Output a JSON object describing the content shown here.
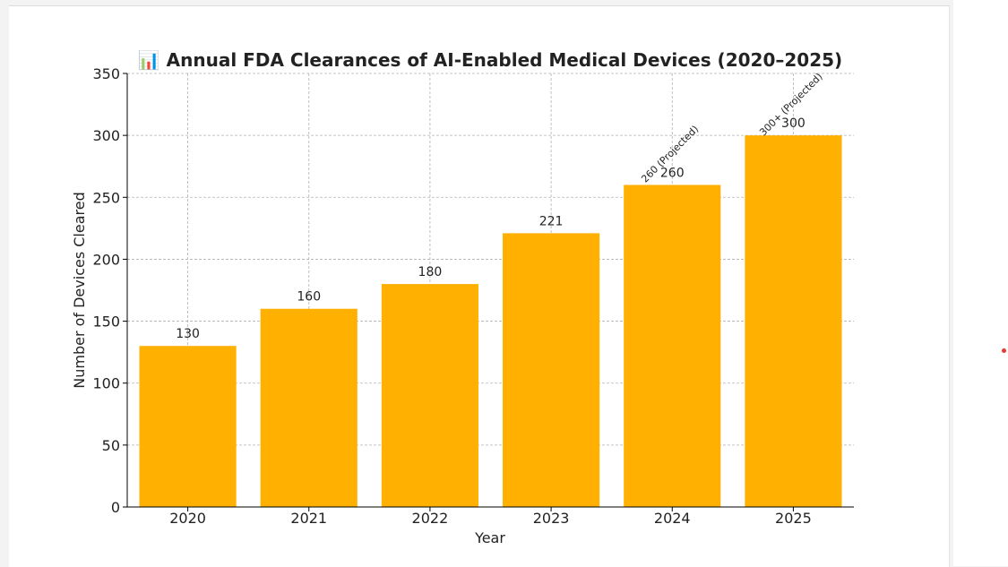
{
  "colors": {
    "bar": "#ffb000",
    "grid": "#b0b0b0",
    "axis": "#000000",
    "text": "#222222",
    "marker_dot": "#e53935"
  },
  "chart_data": {
    "type": "bar",
    "title": "📊 Annual FDA Clearances of AI-Enabled Medical Devices (2020–2025)",
    "xlabel": "Year",
    "ylabel": "Number of Devices Cleared",
    "categories": [
      "2020",
      "2021",
      "2022",
      "2023",
      "2024",
      "2025"
    ],
    "values": [
      130,
      160,
      180,
      221,
      260,
      300
    ],
    "data_labels": [
      "130",
      "160",
      "180",
      "221",
      "260",
      "300"
    ],
    "ylim": [
      0,
      350
    ],
    "yticks": [
      0,
      50,
      100,
      150,
      200,
      250,
      300,
      350
    ],
    "grid": true,
    "annotations": [
      {
        "category": "2024",
        "text": "260 (Projected)"
      },
      {
        "category": "2025",
        "text": "300+ (Projected)"
      }
    ]
  }
}
